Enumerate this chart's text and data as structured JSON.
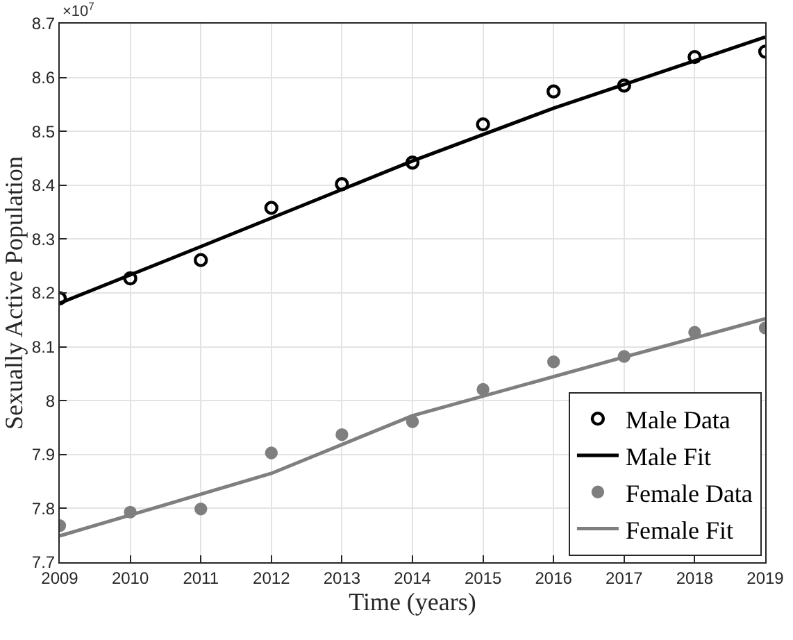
{
  "chart_data": {
    "type": "scatter",
    "xlabel": "Time (years)",
    "ylabel": "Sexually Active Population",
    "annotations": [
      "×10$^{7}$"
    ],
    "x": [
      2009,
      2010,
      2011,
      2012,
      2013,
      2014,
      2015,
      2016,
      2017,
      2018,
      2019
    ],
    "xlim": [
      2009,
      2019
    ],
    "xticks": [
      2009,
      2010,
      2011,
      2012,
      2013,
      2014,
      2015,
      2016,
      2017,
      2018,
      2019
    ],
    "ylim": [
      7.7,
      8.7
    ],
    "yticks": [
      7.7,
      7.8,
      7.9,
      8,
      8.1,
      8.2,
      8.3,
      8.4,
      8.5,
      8.6,
      8.7
    ],
    "grid": true,
    "legend": "bottom right",
    "series": [
      {
        "name": "Male Data",
        "type": "scatter",
        "marker": "circle-open",
        "color": "#000000",
        "values": [
          8.19,
          8.227,
          8.261,
          8.358,
          8.402,
          8.442,
          8.513,
          8.574,
          8.585,
          8.638,
          8.648
        ]
      },
      {
        "name": "Male Fit",
        "type": "line",
        "marker": "none",
        "color": "#000000",
        "x": [
          2009,
          2011,
          2014,
          2016,
          2019
        ],
        "values": [
          8.181,
          8.286,
          8.445,
          8.543,
          8.675
        ]
      },
      {
        "name": "Female Data",
        "type": "scatter",
        "marker": "circle",
        "color": "#7f7f7f",
        "values": [
          7.768,
          7.793,
          7.799,
          7.903,
          7.937,
          7.961,
          8.021,
          8.072,
          8.082,
          8.127,
          8.135
        ]
      },
      {
        "name": "Female Fit",
        "type": "line",
        "marker": "none",
        "color": "#7f7f7f",
        "x": [
          2009,
          2012,
          2014,
          2017,
          2019
        ],
        "values": [
          7.749,
          7.865,
          7.972,
          8.081,
          8.152
        ]
      }
    ]
  }
}
